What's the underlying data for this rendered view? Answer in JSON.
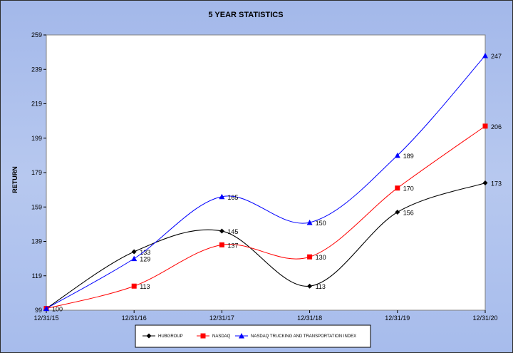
{
  "chart_data": {
    "type": "line",
    "title": "5 YEAR STATISTICS",
    "xlabel": "",
    "ylabel": "RETURN",
    "categories": [
      "12/31/15",
      "12/31/16",
      "12/31/17",
      "12/31/18",
      "12/31/19",
      "12/31/20"
    ],
    "ylim": [
      99,
      259
    ],
    "yticks": [
      99,
      119,
      139,
      159,
      179,
      199,
      219,
      239,
      259
    ],
    "grid": false,
    "legend_position": "bottom",
    "series": [
      {
        "name": "HUBGROUP",
        "values": [
          100,
          133,
          145,
          113,
          156,
          173
        ],
        "labels": [
          "100",
          "133",
          "145",
          "113",
          "156",
          "173"
        ],
        "color": "#000000",
        "marker": "diamond"
      },
      {
        "name": "NASDAQ",
        "values": [
          100,
          113,
          137,
          130,
          170,
          206
        ],
        "labels": [
          "",
          "113",
          "137",
          "130",
          "170",
          "206"
        ],
        "color": "#ff0000",
        "marker": "square"
      },
      {
        "name": "NASDAQ TRUCKING AND TRANSPORTATION INDEX",
        "values": [
          100,
          129,
          165,
          150,
          189,
          247
        ],
        "labels": [
          "",
          "129",
          "165",
          "150",
          "189",
          "247"
        ],
        "color": "#0000ff",
        "marker": "triangle"
      }
    ]
  }
}
